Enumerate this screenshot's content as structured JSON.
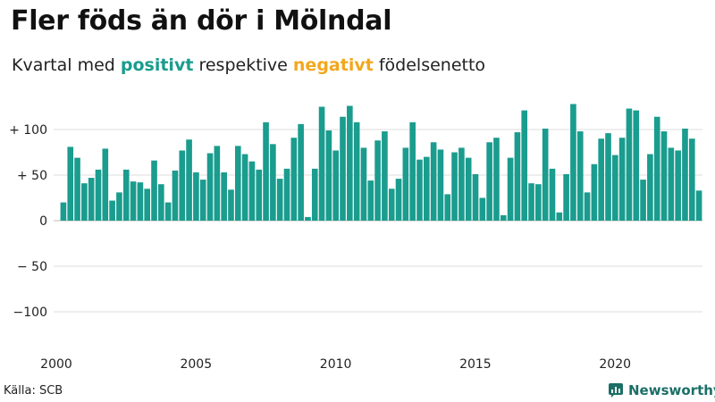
{
  "header": {
    "title": "Fler föds än dör i Mölndal",
    "subtitle_prefix": "Kvartal med ",
    "subtitle_positive": "positivt",
    "subtitle_middle": " respektive ",
    "subtitle_negative": "negativt",
    "subtitle_suffix": " födelsenetto"
  },
  "footer": {
    "source": "Källa: SCB",
    "brand": "Newsworthy"
  },
  "colors": {
    "positive": "#1a9c8e",
    "negative": "#f2a81d",
    "grid": "#dddddd",
    "brand": "#1b6f67"
  },
  "chart_data": {
    "type": "bar",
    "title": "Fler föds än dör i Mölndal",
    "subtitle": "Kvartal med positivt respektive negativt födelsenetto",
    "xlabel": "",
    "ylabel": "",
    "ylim": [
      -130,
      130
    ],
    "grid": true,
    "yticks": [
      {
        "value": 100,
        "label": "+ 100"
      },
      {
        "value": 50,
        "label": "+  50"
      },
      {
        "value": 0,
        "label": "0"
      },
      {
        "value": -50,
        "label": "− 50"
      },
      {
        "value": -100,
        "label": "−100"
      }
    ],
    "xticks": [
      {
        "value": 2000,
        "label": "2000"
      },
      {
        "value": 2005,
        "label": "2005"
      },
      {
        "value": 2010,
        "label": "2010"
      },
      {
        "value": 2015,
        "label": "2015"
      },
      {
        "value": 2020,
        "label": "2020"
      }
    ],
    "x_start": 2000.0,
    "x_step": 0.25,
    "values": [
      20,
      81,
      69,
      41,
      47,
      56,
      79,
      22,
      31,
      56,
      43,
      42,
      35,
      66,
      40,
      20,
      55,
      77,
      89,
      53,
      45,
      74,
      82,
      53,
      34,
      82,
      73,
      65,
      56,
      108,
      84,
      46,
      57,
      91,
      106,
      4,
      57,
      125,
      99,
      77,
      114,
      126,
      108,
      80,
      44,
      88,
      98,
      35,
      46,
      80,
      108,
      67,
      70,
      86,
      78,
      29,
      75,
      80,
      69,
      51,
      25,
      86,
      91,
      6,
      69,
      97,
      121,
      41,
      40,
      101,
      57,
      9,
      51,
      128,
      98,
      31,
      62,
      90,
      96,
      72,
      91,
      123,
      121,
      45,
      73,
      114,
      98,
      80,
      77,
      101,
      90,
      33
    ]
  }
}
